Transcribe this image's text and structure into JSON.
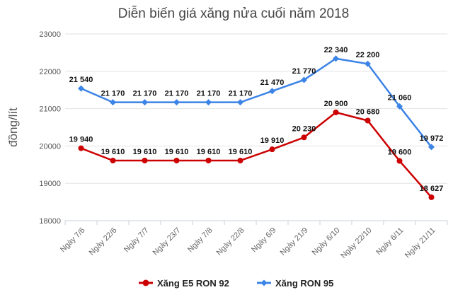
{
  "chart_data": {
    "type": "line",
    "title": "Diễn biến giá xăng nửa cuối năm 2018",
    "xlabel": "",
    "ylabel": "đồng/lít",
    "ylim": [
      18000,
      23000
    ],
    "yticks": [
      18000,
      19000,
      20000,
      21000,
      22000,
      23000
    ],
    "grid": true,
    "legend_position": "bottom",
    "categories": [
      "Ngày 7/6",
      "Ngày 22/6",
      "Ngày 7/7",
      "Ngày 23/7",
      "Ngày 7/8",
      "Ngày 22/8",
      "Ngày 6/9",
      "Ngày 21/9",
      "Ngày 6/10",
      "Ngày 22/10",
      "Ngày 6/11",
      "Ngày 21/11"
    ],
    "series": [
      {
        "name": "Xăng E5 RON 92",
        "color": "#cc0000",
        "marker": "circle",
        "values": [
          19940,
          19610,
          19610,
          19610,
          19610,
          19610,
          19910,
          20230,
          20900,
          20680,
          19600,
          18627
        ],
        "labels": [
          "19 940",
          "19 610",
          "19 610",
          "19 610",
          "19 610",
          "19 610",
          "19 910",
          "20 230",
          "20 900",
          "20 680",
          "19 600",
          "18 627"
        ]
      },
      {
        "name": "Xăng RON 95",
        "color": "#3c84e6",
        "marker": "diamond",
        "values": [
          21540,
          21170,
          21170,
          21170,
          21170,
          21170,
          21470,
          21770,
          22340,
          22200,
          21060,
          19972
        ],
        "labels": [
          "21 540",
          "21 170",
          "21 170",
          "21 170",
          "21 170",
          "21 170",
          "21 470",
          "21 770",
          "22 340",
          "22 200",
          "21 060",
          "19 972"
        ]
      }
    ]
  }
}
